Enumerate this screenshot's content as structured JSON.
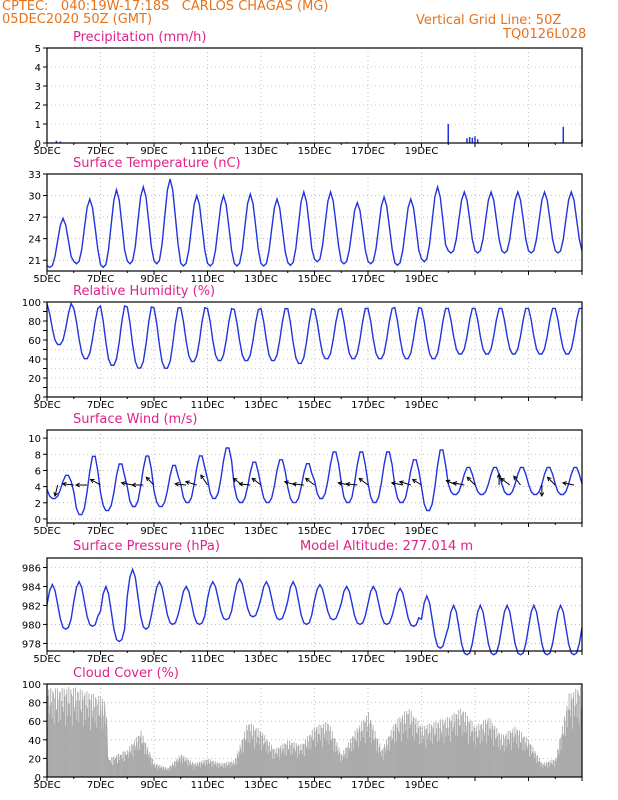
{
  "header": {
    "line1": "CPTEC:   040:19W-17:18S   CARLOS CHAGAS (MG)",
    "line2": "05DEC2020 50Z (GMT)",
    "grid_note": "Vertical Grid Line: 50Z",
    "code": "TQ0126L028"
  },
  "colors": {
    "header": "#e8721c",
    "title": "#e0218a",
    "series": "#2233dd",
    "cloud": "#a9a9a9",
    "wind_arrow": "#000000",
    "grid": "#9a9a9a"
  },
  "x_ticks": [
    "5DEC",
    "7DEC",
    "9DEC",
    "11DEC",
    "13DEC",
    "15DEC",
    "17DEC",
    "19DEC"
  ],
  "chart_data": [
    {
      "id": "precip",
      "type": "bar",
      "title": "Precipitation (mm/h)",
      "ylim": [
        0,
        5
      ],
      "yticks": [
        0,
        1,
        2,
        3,
        4,
        5
      ],
      "x": [
        0.35,
        0.5,
        9.3,
        11.2,
        15.0,
        15.7,
        15.8,
        15.9,
        16.0,
        16.1,
        19.3,
        20.0
      ],
      "values": [
        0.12,
        0.08,
        0.03,
        0.05,
        1.0,
        0.25,
        0.32,
        0.28,
        0.35,
        0.2,
        0.85,
        0.2
      ],
      "grid": true
    },
    {
      "id": "temp",
      "type": "line",
      "title": "Surface Temperature (nC)",
      "ylim": [
        19.5,
        33
      ],
      "yticks": [
        21,
        24,
        27,
        30,
        33
      ],
      "daily_max": [
        26.8,
        29.5,
        30.8,
        31.2,
        32.3,
        30.0,
        30.0,
        30.2,
        29.5,
        30.5,
        30.5,
        29.0,
        29.8,
        29.5,
        31.2,
        30.5
      ],
      "daily_min": [
        20.0,
        20.5,
        20.0,
        20.5,
        20.5,
        20.2,
        20.2,
        20.2,
        20.2,
        20.3,
        20.8,
        20.5,
        20.5,
        20.3,
        20.8,
        22.0
      ],
      "grid": true
    },
    {
      "id": "rh",
      "type": "line",
      "title": "Relative Humidity (%)",
      "ylim": [
        0,
        100
      ],
      "yticks": [
        0,
        10,
        20,
        30,
        40,
        50,
        60,
        70,
        80,
        90,
        100
      ],
      "ytick_labels": [
        0,
        20,
        40,
        60,
        80,
        100
      ],
      "daily_max": [
        100,
        95,
        98,
        97,
        96,
        96,
        95,
        94,
        95,
        95,
        94,
        95,
        95,
        96,
        95,
        95
      ],
      "daily_min": [
        55,
        40,
        33,
        30,
        30,
        37,
        38,
        38,
        38,
        35,
        40,
        40,
        40,
        40,
        40,
        45
      ],
      "grid": true
    },
    {
      "id": "wind",
      "type": "line",
      "title": "Surface Wind (m/s)",
      "ylim": [
        -0.5,
        11
      ],
      "yticks": [
        0,
        2,
        4,
        6,
        8,
        10
      ],
      "daily_max": [
        5.5,
        8.0,
        7.0,
        8.0,
        6.8,
        8.0,
        9.0,
        7.2,
        7.5,
        7.0,
        8.5,
        8.5,
        8.5,
        7.5,
        8.8,
        6.5
      ],
      "daily_min": [
        2.5,
        0.5,
        1.0,
        1.5,
        1.5,
        2.0,
        2.5,
        2.0,
        2.0,
        2.0,
        2.5,
        2.0,
        2.0,
        2.0,
        1.0,
        3.0
      ],
      "arrows": [
        {
          "x": 0.4,
          "u": -0.25,
          "v": -1.0
        },
        {
          "x": 1.0,
          "u": -1.0,
          "v": 0.1
        },
        {
          "x": 1.5,
          "u": -1.0,
          "v": 0.0
        },
        {
          "x": 2.0,
          "u": -0.9,
          "v": 0.5
        },
        {
          "x": 3.2,
          "u": -1.0,
          "v": 0.2
        },
        {
          "x": 3.6,
          "u": -1.0,
          "v": 0.0
        },
        {
          "x": 4.0,
          "u": -0.7,
          "v": 0.7
        },
        {
          "x": 5.2,
          "u": -1.0,
          "v": 0.1
        },
        {
          "x": 5.6,
          "u": -1.0,
          "v": 0.3
        },
        {
          "x": 6.0,
          "u": -0.6,
          "v": 0.9
        },
        {
          "x": 7.3,
          "u": -0.8,
          "v": 0.6
        },
        {
          "x": 7.6,
          "u": -1.0,
          "v": 0.1
        },
        {
          "x": 8.0,
          "u": -0.8,
          "v": 0.6
        },
        {
          "x": 9.3,
          "u": -1.0,
          "v": 0.3
        },
        {
          "x": 9.6,
          "u": -1.0,
          "v": 0.1
        },
        {
          "x": 10.0,
          "u": -0.8,
          "v": 0.6
        },
        {
          "x": 11.3,
          "u": -1.0,
          "v": 0.2
        },
        {
          "x": 11.6,
          "u": -1.0,
          "v": 0.1
        },
        {
          "x": 12.0,
          "u": -0.8,
          "v": 0.6
        },
        {
          "x": 13.3,
          "u": -1.0,
          "v": 0.2
        },
        {
          "x": 13.6,
          "u": -1.0,
          "v": 0.3
        },
        {
          "x": 14.0,
          "u": -0.8,
          "v": 0.5
        },
        {
          "x": 15.3,
          "u": -0.9,
          "v": 0.4
        },
        {
          "x": 15.6,
          "u": -1.0,
          "v": 0.2
        },
        {
          "x": 16.0,
          "u": -0.7,
          "v": 0.7
        },
        {
          "x": 16.9,
          "u": 0.0,
          "v": 1.0
        },
        {
          "x": 17.3,
          "u": -0.8,
          "v": 0.6
        },
        {
          "x": 17.7,
          "u": -0.6,
          "v": 0.8
        },
        {
          "x": 18.5,
          "u": 0.0,
          "v": -1.0
        },
        {
          "x": 19.0,
          "u": -0.7,
          "v": 0.7
        },
        {
          "x": 19.7,
          "u": -1.0,
          "v": 0.2
        }
      ],
      "grid": true
    },
    {
      "id": "pres",
      "type": "line",
      "title": "Surface Pressure (hPa)",
      "annotation": "Model Altitude: 277.014 m",
      "ylim": [
        977.2,
        987
      ],
      "yticks": [
        978,
        980,
        982,
        984,
        986
      ],
      "daily_max": [
        984.2,
        984.5,
        984.0,
        985.8,
        984.5,
        984.0,
        984.5,
        984.8,
        984.5,
        984.5,
        984.2,
        984.0,
        984.0,
        983.8,
        983.0,
        982.0
      ],
      "daily_min": [
        979.5,
        979.8,
        978.2,
        979.5,
        980.0,
        980.0,
        980.5,
        980.8,
        980.5,
        980.0,
        980.5,
        980.0,
        980.0,
        979.8,
        977.5,
        976.8
      ],
      "grid": true
    },
    {
      "id": "cloud",
      "type": "area",
      "title": "Cloud Cover (%)",
      "ylim": [
        0,
        100
      ],
      "yticks": [
        0,
        20,
        40,
        60,
        80,
        100
      ],
      "x": [
        0,
        0.5,
        1.0,
        1.5,
        2.0,
        2.2,
        2.3,
        3.0,
        3.5,
        4.0,
        4.5,
        5.0,
        5.5,
        6.0,
        6.5,
        7.0,
        7.5,
        8.0,
        8.5,
        9.0,
        9.5,
        10.0,
        10.5,
        11.0,
        11.5,
        12.0,
        12.5,
        13.0,
        13.5,
        14.0,
        14.5,
        15.0,
        15.5,
        16.0,
        16.5,
        17.0,
        17.5,
        18.0,
        18.5,
        19.0,
        19.5,
        20.0
      ],
      "values": [
        96,
        96,
        97,
        92,
        87,
        80,
        20,
        30,
        50,
        15,
        10,
        25,
        15,
        20,
        15,
        18,
        60,
        50,
        30,
        40,
        35,
        55,
        60,
        25,
        50,
        70,
        30,
        60,
        75,
        55,
        60,
        65,
        75,
        55,
        65,
        45,
        55,
        40,
        15,
        20,
        90,
        100
      ],
      "grid": true
    }
  ]
}
